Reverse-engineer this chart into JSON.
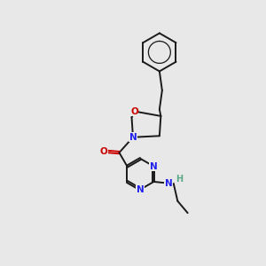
{
  "bg_color": "#e8e8e8",
  "bond_color": "#1a1a1a",
  "N_color": "#2020ee",
  "O_color": "#cc0000",
  "H_color": "#5aaa88",
  "font_size": 7.5,
  "bond_width": 1.4,
  "figsize": [
    3.0,
    3.0
  ],
  "dpi": 100,
  "xlim": [
    0.0,
    10.0
  ],
  "ylim": [
    0.5,
    10.5
  ]
}
